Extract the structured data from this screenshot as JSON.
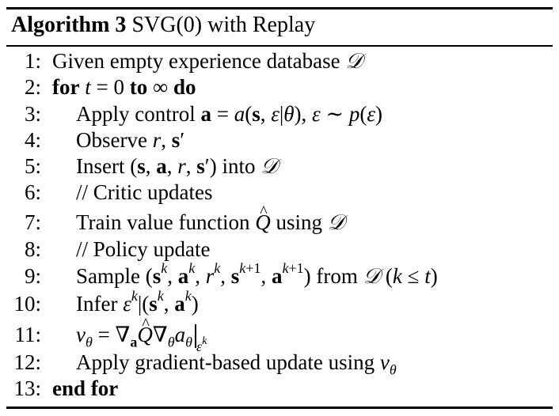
{
  "algorithm": {
    "label": "Algorithm 3",
    "title": "SVG(0) with Replay"
  },
  "lines": [
    {
      "num": "1:",
      "text": "Given empty experience database 𝒟"
    },
    {
      "num": "2:",
      "text": "for t = 0 to ∞ do"
    },
    {
      "num": "3:",
      "text": "Apply control a = a(s, ε|θ), ε ∼ p(ε)"
    },
    {
      "num": "4:",
      "text": "Observe r, s′"
    },
    {
      "num": "5:",
      "text": "Insert (s, a, r, s′) into 𝒟"
    },
    {
      "num": "6:",
      "text": "// Critic updates"
    },
    {
      "num": "7:",
      "text": "Train value function Q̂ using 𝒟"
    },
    {
      "num": "8:",
      "text": "// Policy update"
    },
    {
      "num": "9:",
      "text": "Sample (sᵏ, aᵏ, rᵏ, sᵏ⁺¹, aᵏ⁺¹) from 𝒟 (k ≤ t)"
    },
    {
      "num": "10:",
      "text": "Infer εᵏ|(sᵏ, aᵏ)"
    },
    {
      "num": "11:",
      "text": "v_θ = ∇_a Q̂ ∇_θ a_θ |_εᵏ"
    },
    {
      "num": "12:",
      "text": "Apply gradient-based update using v_θ"
    },
    {
      "num": "13:",
      "text": "end for"
    }
  ],
  "tokens": {
    "given": "Given empty experience database",
    "D": "𝒟",
    "for_kw": "for",
    "to_kw": "to",
    "do_kw": "do",
    "apply_control": "Apply control",
    "observe": "Observe",
    "insert": "Insert",
    "into": "into",
    "critic_comment": "// Critic updates",
    "train": "Train value function",
    "using": "using",
    "policy_comment": "// Policy update",
    "sample": "Sample",
    "from": "from",
    "infer": "Infer",
    "apply_update": "Apply gradient-based update using",
    "end_for": "end for"
  }
}
